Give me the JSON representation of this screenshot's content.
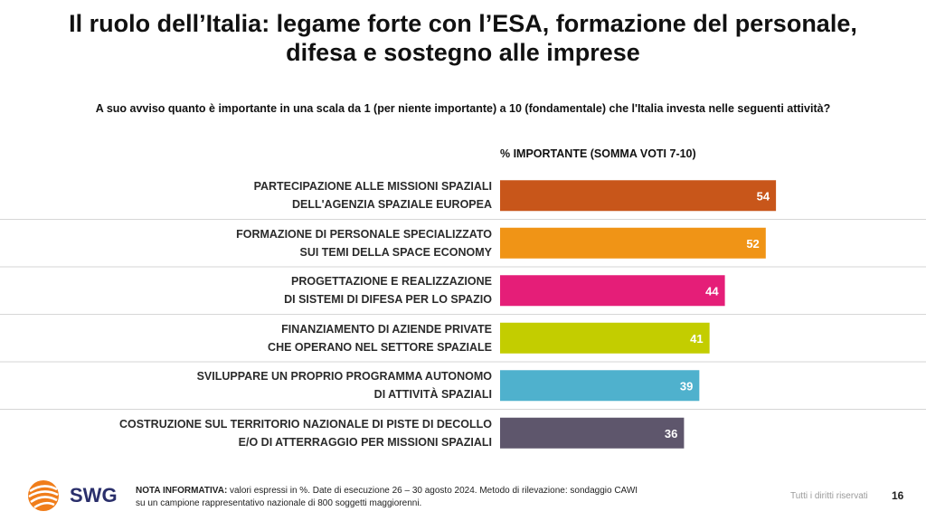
{
  "title_line1": "Il ruolo dell’Italia: legame forte con l’ESA, formazione del personale,",
  "title_line2": "difesa e sostegno alle imprese",
  "question": "A suo avviso quanto è importante in una scala da 1 (per niente importante) a 10 (fondamentale) che l'Italia investa nelle seguenti attività?",
  "scale_label": "% IMPORTANTE (SOMMA VOTI 7-10)",
  "chart_data": {
    "type": "bar",
    "orientation": "horizontal",
    "title": "% IMPORTANTE (SOMMA VOTI 7-10)",
    "categories": [
      [
        "PARTECIPAZIONE ALLE MISSIONI SPAZIALI",
        "DELL'AGENZIA SPAZIALE EUROPEA"
      ],
      [
        "FORMAZIONE DI PERSONALE SPECIALIZZATO",
        "SUI TEMI DELLA SPACE ECONOMY"
      ],
      [
        "PROGETTAZIONE E REALIZZAZIONE",
        "DI SISTEMI DI DIFESA PER LO SPAZIO"
      ],
      [
        "FINANZIAMENTO DI AZIENDE PRIVATE",
        "CHE OPERANO NEL SETTORE SPAZIALE"
      ],
      [
        "SVILUPPARE UN PROPRIO PROGRAMMA AUTONOMO",
        "DI ATTIVITÀ SPAZIALI"
      ],
      [
        "COSTRUZIONE SUL TERRITORIO NAZIONALE DI PISTE DI DECOLLO",
        "E/O DI ATTERRAGGIO PER MISSIONI SPAZIALI"
      ]
    ],
    "values": [
      54,
      52,
      44,
      41,
      39,
      36
    ],
    "colors": [
      "#c8561a",
      "#f09416",
      "#e51e78",
      "#c3cd00",
      "#4fb1cd",
      "#5e566c"
    ],
    "xlim": [
      0,
      100
    ],
    "grid": false,
    "legend": "none"
  },
  "footer": {
    "note_bold": "NOTA INFORMATIVA:",
    "note_line1": " valori espressi in %. Date di esecuzione 26 – 30 agosto 2024. Metodo di rilevazione: sondaggio CAWI",
    "note_line2": "su un campione rappresentativo nazionale di 800 soggetti maggiorenni.",
    "rights": "Tutti i diritti riservati",
    "page_number": "16"
  },
  "logo": {
    "text": "SWG",
    "icon": "swg-globe-icon"
  },
  "colors": {
    "accent": "#c8561a",
    "logo_text": "#2a2f6b"
  }
}
